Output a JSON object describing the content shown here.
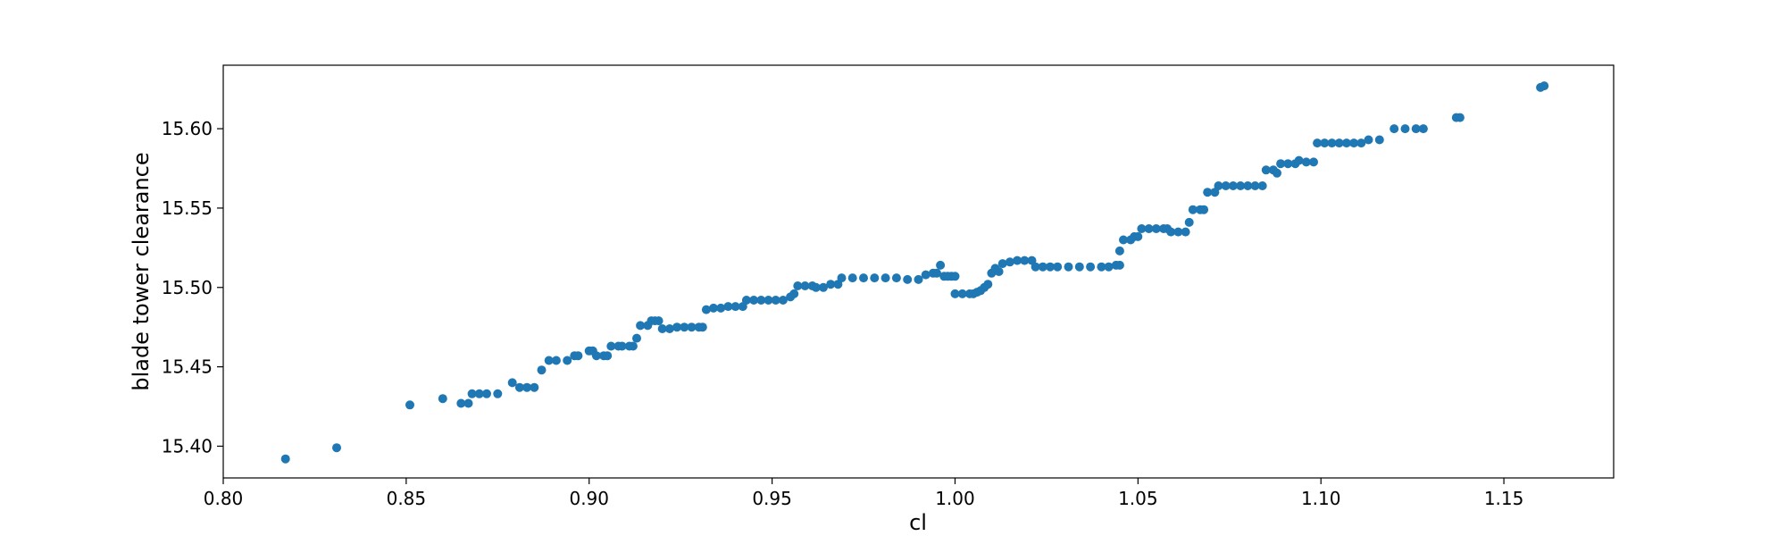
{
  "chart_data": {
    "type": "scatter",
    "xlabel": "cl",
    "ylabel": "blade tower clearance",
    "xlim": [
      0.8,
      1.18
    ],
    "ylim": [
      15.38,
      15.64
    ],
    "xticks": [
      "0.80",
      "0.85",
      "0.90",
      "0.95",
      "1.00",
      "1.05",
      "1.10",
      "1.15"
    ],
    "yticks": [
      "15.40",
      "15.45",
      "15.50",
      "15.55",
      "15.60"
    ],
    "grid": false,
    "marker_color": "#1f77b4",
    "series": [
      {
        "points": [
          [
            0.817,
            15.392
          ],
          [
            0.831,
            15.399
          ],
          [
            0.851,
            15.426
          ],
          [
            0.86,
            15.43
          ],
          [
            0.865,
            15.427
          ],
          [
            0.867,
            15.427
          ],
          [
            0.868,
            15.433
          ],
          [
            0.87,
            15.433
          ],
          [
            0.872,
            15.433
          ],
          [
            0.875,
            15.433
          ],
          [
            0.879,
            15.44
          ],
          [
            0.881,
            15.437
          ],
          [
            0.883,
            15.437
          ],
          [
            0.885,
            15.437
          ],
          [
            0.887,
            15.448
          ],
          [
            0.889,
            15.454
          ],
          [
            0.891,
            15.454
          ],
          [
            0.894,
            15.454
          ],
          [
            0.896,
            15.457
          ],
          [
            0.897,
            15.457
          ],
          [
            0.9,
            15.46
          ],
          [
            0.901,
            15.46
          ],
          [
            0.902,
            15.457
          ],
          [
            0.904,
            15.457
          ],
          [
            0.905,
            15.457
          ],
          [
            0.906,
            15.463
          ],
          [
            0.908,
            15.463
          ],
          [
            0.909,
            15.463
          ],
          [
            0.911,
            15.463
          ],
          [
            0.912,
            15.463
          ],
          [
            0.913,
            15.468
          ],
          [
            0.914,
            15.476
          ],
          [
            0.916,
            15.476
          ],
          [
            0.917,
            15.479
          ],
          [
            0.918,
            15.479
          ],
          [
            0.919,
            15.479
          ],
          [
            0.92,
            15.474
          ],
          [
            0.922,
            15.474
          ],
          [
            0.924,
            15.475
          ],
          [
            0.926,
            15.475
          ],
          [
            0.928,
            15.475
          ],
          [
            0.93,
            15.475
          ],
          [
            0.931,
            15.475
          ],
          [
            0.932,
            15.486
          ],
          [
            0.934,
            15.487
          ],
          [
            0.936,
            15.487
          ],
          [
            0.938,
            15.488
          ],
          [
            0.94,
            15.488
          ],
          [
            0.942,
            15.488
          ],
          [
            0.943,
            15.492
          ],
          [
            0.945,
            15.492
          ],
          [
            0.947,
            15.492
          ],
          [
            0.949,
            15.492
          ],
          [
            0.951,
            15.492
          ],
          [
            0.953,
            15.492
          ],
          [
            0.955,
            15.494
          ],
          [
            0.956,
            15.496
          ],
          [
            0.957,
            15.501
          ],
          [
            0.959,
            15.501
          ],
          [
            0.961,
            15.501
          ],
          [
            0.962,
            15.5
          ],
          [
            0.964,
            15.5
          ],
          [
            0.966,
            15.502
          ],
          [
            0.968,
            15.502
          ],
          [
            0.969,
            15.506
          ],
          [
            0.972,
            15.506
          ],
          [
            0.975,
            15.506
          ],
          [
            0.978,
            15.506
          ],
          [
            0.981,
            15.506
          ],
          [
            0.984,
            15.506
          ],
          [
            0.987,
            15.505
          ],
          [
            0.99,
            15.505
          ],
          [
            0.992,
            15.508
          ],
          [
            0.994,
            15.509
          ],
          [
            0.995,
            15.509
          ],
          [
            0.996,
            15.514
          ],
          [
            0.997,
            15.507
          ],
          [
            0.998,
            15.507
          ],
          [
            0.999,
            15.507
          ],
          [
            1.0,
            15.507
          ],
          [
            1.0,
            15.496
          ],
          [
            1.002,
            15.496
          ],
          [
            1.004,
            15.496
          ],
          [
            1.005,
            15.496
          ],
          [
            1.006,
            15.497
          ],
          [
            1.007,
            15.498
          ],
          [
            1.008,
            15.5
          ],
          [
            1.009,
            15.502
          ],
          [
            1.01,
            15.509
          ],
          [
            1.011,
            15.512
          ],
          [
            1.012,
            15.51
          ],
          [
            1.013,
            15.515
          ],
          [
            1.015,
            15.516
          ],
          [
            1.017,
            15.517
          ],
          [
            1.019,
            15.517
          ],
          [
            1.021,
            15.517
          ],
          [
            1.022,
            15.513
          ],
          [
            1.024,
            15.513
          ],
          [
            1.026,
            15.513
          ],
          [
            1.028,
            15.513
          ],
          [
            1.031,
            15.513
          ],
          [
            1.034,
            15.513
          ],
          [
            1.037,
            15.513
          ],
          [
            1.04,
            15.513
          ],
          [
            1.042,
            15.513
          ],
          [
            1.044,
            15.514
          ],
          [
            1.045,
            15.514
          ],
          [
            1.045,
            15.523
          ],
          [
            1.046,
            15.53
          ],
          [
            1.048,
            15.53
          ],
          [
            1.049,
            15.532
          ],
          [
            1.05,
            15.532
          ],
          [
            1.051,
            15.537
          ],
          [
            1.053,
            15.537
          ],
          [
            1.055,
            15.537
          ],
          [
            1.057,
            15.537
          ],
          [
            1.058,
            15.537
          ],
          [
            1.059,
            15.535
          ],
          [
            1.061,
            15.535
          ],
          [
            1.063,
            15.535
          ],
          [
            1.064,
            15.541
          ],
          [
            1.065,
            15.549
          ],
          [
            1.067,
            15.549
          ],
          [
            1.068,
            15.549
          ],
          [
            1.069,
            15.56
          ],
          [
            1.071,
            15.56
          ],
          [
            1.072,
            15.564
          ],
          [
            1.074,
            15.564
          ],
          [
            1.076,
            15.564
          ],
          [
            1.078,
            15.564
          ],
          [
            1.08,
            15.564
          ],
          [
            1.082,
            15.564
          ],
          [
            1.084,
            15.564
          ],
          [
            1.085,
            15.574
          ],
          [
            1.087,
            15.574
          ],
          [
            1.088,
            15.572
          ],
          [
            1.089,
            15.578
          ],
          [
            1.091,
            15.578
          ],
          [
            1.093,
            15.578
          ],
          [
            1.094,
            15.58
          ],
          [
            1.096,
            15.579
          ],
          [
            1.098,
            15.579
          ],
          [
            1.099,
            15.591
          ],
          [
            1.101,
            15.591
          ],
          [
            1.103,
            15.591
          ],
          [
            1.105,
            15.591
          ],
          [
            1.107,
            15.591
          ],
          [
            1.109,
            15.591
          ],
          [
            1.111,
            15.591
          ],
          [
            1.113,
            15.593
          ],
          [
            1.116,
            15.593
          ],
          [
            1.12,
            15.6
          ],
          [
            1.123,
            15.6
          ],
          [
            1.126,
            15.6
          ],
          [
            1.128,
            15.6
          ],
          [
            1.137,
            15.607
          ],
          [
            1.138,
            15.607
          ],
          [
            1.16,
            15.626
          ],
          [
            1.161,
            15.627
          ]
        ]
      }
    ]
  }
}
